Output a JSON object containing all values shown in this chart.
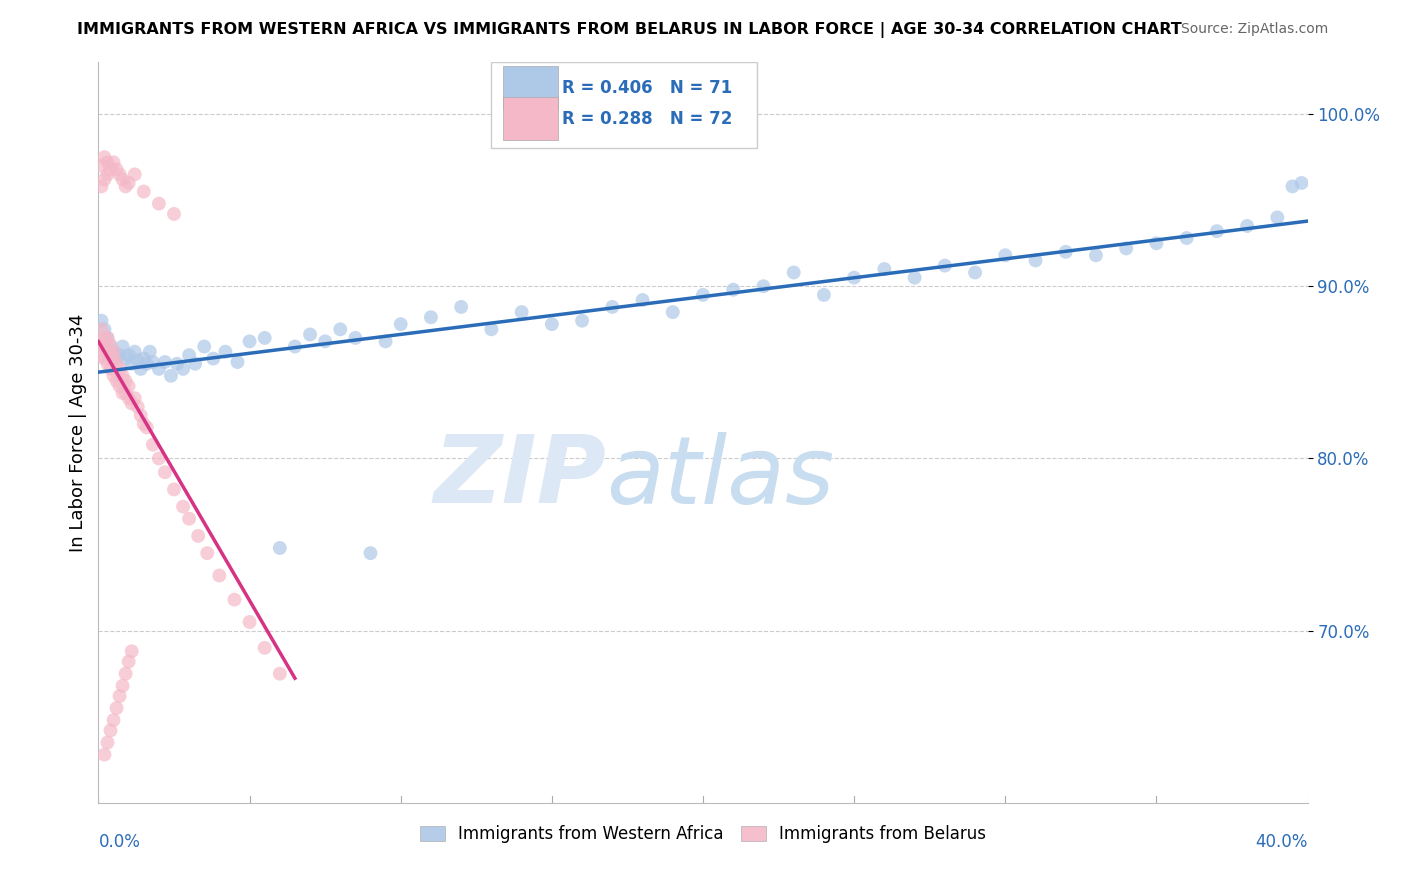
{
  "title": "IMMIGRANTS FROM WESTERN AFRICA VS IMMIGRANTS FROM BELARUS IN LABOR FORCE | AGE 30-34 CORRELATION CHART",
  "source": "Source: ZipAtlas.com",
  "ylabel": "In Labor Force | Age 30-34",
  "legend_blue_r": "R = 0.406",
  "legend_blue_n": "N = 71",
  "legend_pink_r": "R = 0.288",
  "legend_pink_n": "N = 72",
  "legend_blue_label": "Immigrants from Western Africa",
  "legend_pink_label": "Immigrants from Belarus",
  "blue_color": "#aec8e8",
  "pink_color": "#f4b8c8",
  "trend_blue_color": "#2b6cb8",
  "trend_pink_color": "#d63384",
  "r_n_color": "#2b6cb8",
  "watermark_zip": "ZIP",
  "watermark_atlas": "atlas",
  "watermark_color": "#d4e4f5",
  "xmin": 0.0,
  "xmax": 0.4,
  "ymin": 0.6,
  "ymax": 1.03,
  "y_ticks": [
    0.7,
    0.8,
    0.9,
    1.0
  ],
  "y_tick_labels": [
    "70.0%",
    "80.0%",
    "90.0%",
    "100.0%"
  ],
  "blue_x": [
    0.001,
    0.002,
    0.003,
    0.004,
    0.005,
    0.006,
    0.007,
    0.008,
    0.009,
    0.01,
    0.011,
    0.012,
    0.013,
    0.014,
    0.015,
    0.016,
    0.017,
    0.018,
    0.02,
    0.022,
    0.024,
    0.026,
    0.028,
    0.03,
    0.032,
    0.035,
    0.038,
    0.042,
    0.046,
    0.05,
    0.055,
    0.06,
    0.065,
    0.07,
    0.075,
    0.08,
    0.085,
    0.09,
    0.095,
    0.1,
    0.11,
    0.12,
    0.13,
    0.14,
    0.15,
    0.16,
    0.17,
    0.18,
    0.19,
    0.2,
    0.21,
    0.22,
    0.23,
    0.24,
    0.25,
    0.26,
    0.27,
    0.28,
    0.29,
    0.3,
    0.31,
    0.32,
    0.33,
    0.34,
    0.35,
    0.36,
    0.37,
    0.38,
    0.39,
    0.395,
    0.398
  ],
  "blue_y": [
    0.88,
    0.875,
    0.87,
    0.865,
    0.862,
    0.858,
    0.86,
    0.865,
    0.858,
    0.86,
    0.855,
    0.862,
    0.857,
    0.852,
    0.858,
    0.855,
    0.862,
    0.856,
    0.852,
    0.856,
    0.848,
    0.855,
    0.852,
    0.86,
    0.855,
    0.865,
    0.858,
    0.862,
    0.856,
    0.868,
    0.87,
    0.748,
    0.865,
    0.872,
    0.868,
    0.875,
    0.87,
    0.745,
    0.868,
    0.878,
    0.882,
    0.888,
    0.875,
    0.885,
    0.878,
    0.88,
    0.888,
    0.892,
    0.885,
    0.895,
    0.898,
    0.9,
    0.908,
    0.895,
    0.905,
    0.91,
    0.905,
    0.912,
    0.908,
    0.918,
    0.915,
    0.92,
    0.918,
    0.922,
    0.925,
    0.928,
    0.932,
    0.935,
    0.94,
    0.958,
    0.96
  ],
  "pink_x": [
    0.0005,
    0.001,
    0.001,
    0.0015,
    0.002,
    0.002,
    0.002,
    0.003,
    0.003,
    0.003,
    0.004,
    0.004,
    0.004,
    0.005,
    0.005,
    0.005,
    0.006,
    0.006,
    0.007,
    0.007,
    0.008,
    0.008,
    0.009,
    0.009,
    0.01,
    0.01,
    0.011,
    0.012,
    0.013,
    0.014,
    0.015,
    0.016,
    0.018,
    0.02,
    0.022,
    0.025,
    0.028,
    0.03,
    0.033,
    0.036,
    0.04,
    0.045,
    0.05,
    0.055,
    0.06,
    0.002,
    0.003,
    0.004,
    0.005,
    0.006,
    0.007,
    0.008,
    0.009,
    0.01,
    0.011,
    0.001,
    0.002,
    0.003,
    0.001,
    0.002,
    0.003,
    0.004,
    0.005,
    0.006,
    0.007,
    0.008,
    0.009,
    0.01,
    0.012,
    0.015,
    0.02,
    0.025
  ],
  "pink_y": [
    0.868,
    0.875,
    0.86,
    0.865,
    0.87,
    0.858,
    0.865,
    0.855,
    0.862,
    0.87,
    0.852,
    0.86,
    0.866,
    0.848,
    0.858,
    0.862,
    0.845,
    0.855,
    0.842,
    0.852,
    0.838,
    0.848,
    0.838,
    0.845,
    0.835,
    0.842,
    0.832,
    0.835,
    0.83,
    0.825,
    0.82,
    0.818,
    0.808,
    0.8,
    0.792,
    0.782,
    0.772,
    0.765,
    0.755,
    0.745,
    0.732,
    0.718,
    0.705,
    0.69,
    0.675,
    0.628,
    0.635,
    0.642,
    0.648,
    0.655,
    0.662,
    0.668,
    0.675,
    0.682,
    0.688,
    0.97,
    0.975,
    0.972,
    0.958,
    0.962,
    0.965,
    0.968,
    0.972,
    0.968,
    0.965,
    0.962,
    0.958,
    0.96,
    0.965,
    0.955,
    0.948,
    0.942
  ]
}
